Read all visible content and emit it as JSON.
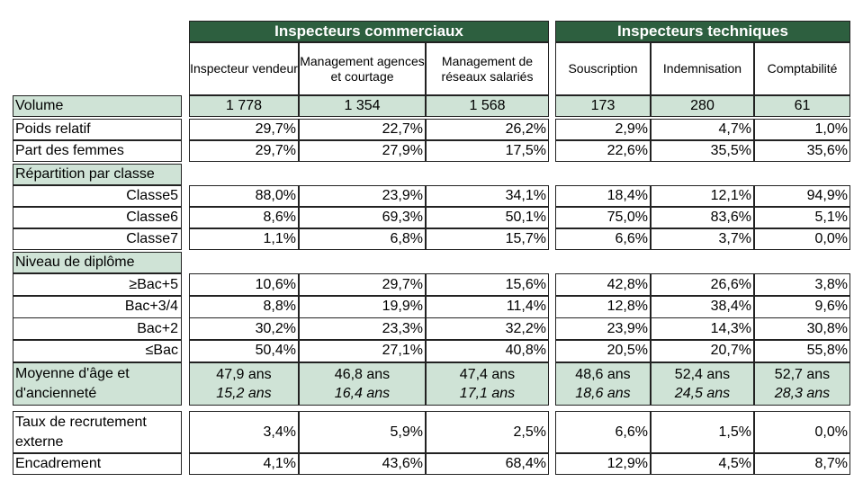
{
  "groups": {
    "commerciaux": "Inspecteurs commerciaux",
    "techniques": "Inspecteurs techniques"
  },
  "subheaders": [
    "Inspecteur vendeur",
    "Management agences et courtage",
    "Management de réseaux salariés",
    "Souscription",
    "Indemnisation",
    "Comptabilité"
  ],
  "volume": {
    "label": "Volume",
    "values": [
      "1 778",
      "1 354",
      "1 568",
      "173",
      "280",
      "61"
    ]
  },
  "poids": {
    "label": "Poids relatif",
    "values": [
      "29,7%",
      "22,7%",
      "26,2%",
      "2,9%",
      "4,7%",
      "1,0%"
    ]
  },
  "femmes": {
    "label": "Part des femmes",
    "values": [
      "29,7%",
      "27,9%",
      "17,5%",
      "22,6%",
      "35,5%",
      "35,6%"
    ]
  },
  "classe": {
    "title": "Répartition par classe",
    "rows": [
      {
        "label": "Classe5",
        "values": [
          "88,0%",
          "23,9%",
          "34,1%",
          "18,4%",
          "12,1%",
          "94,9%"
        ]
      },
      {
        "label": "Classe6",
        "values": [
          "8,6%",
          "69,3%",
          "50,1%",
          "75,0%",
          "83,6%",
          "5,1%"
        ]
      },
      {
        "label": "Classe7",
        "values": [
          "1,1%",
          "6,8%",
          "15,7%",
          "6,6%",
          "3,7%",
          "0,0%"
        ]
      }
    ]
  },
  "diplome": {
    "title": "Niveau de diplôme",
    "rows": [
      {
        "label": "≥Bac+5",
        "values": [
          "10,6%",
          "29,7%",
          "15,6%",
          "42,8%",
          "26,6%",
          "3,8%"
        ]
      },
      {
        "label": "Bac+3/4",
        "values": [
          "8,8%",
          "19,9%",
          "11,4%",
          "12,8%",
          "38,4%",
          "9,6%"
        ]
      },
      {
        "label": "Bac+2",
        "values": [
          "30,2%",
          "23,3%",
          "32,2%",
          "23,9%",
          "14,3%",
          "30,8%"
        ]
      },
      {
        "label": "≤Bac",
        "values": [
          "50,4%",
          "27,1%",
          "40,8%",
          "20,5%",
          "20,7%",
          "55,8%"
        ]
      }
    ]
  },
  "moyenne": {
    "label": "Moyenne d'âge et d'ancienneté",
    "age": [
      "47,9 ans",
      "46,8 ans",
      "47,4 ans",
      "48,6 ans",
      "52,4 ans",
      "52,7 ans"
    ],
    "anciennete": [
      "15,2 ans",
      "16,4 ans",
      "17,1 ans",
      "18,6 ans",
      "24,5 ans",
      "28,3 ans"
    ]
  },
  "recrutement": {
    "label": "Taux de recrutement externe",
    "values": [
      "3,4%",
      "5,9%",
      "2,5%",
      "6,6%",
      "1,5%",
      "0,0%"
    ]
  },
  "encadrement": {
    "label": "Encadrement",
    "values": [
      "4,1%",
      "43,6%",
      "68,4%",
      "12,9%",
      "4,5%",
      "8,7%"
    ]
  },
  "colors": {
    "header_bg": "#2d5f3f",
    "highlight_bg": "#cfe3d6"
  }
}
